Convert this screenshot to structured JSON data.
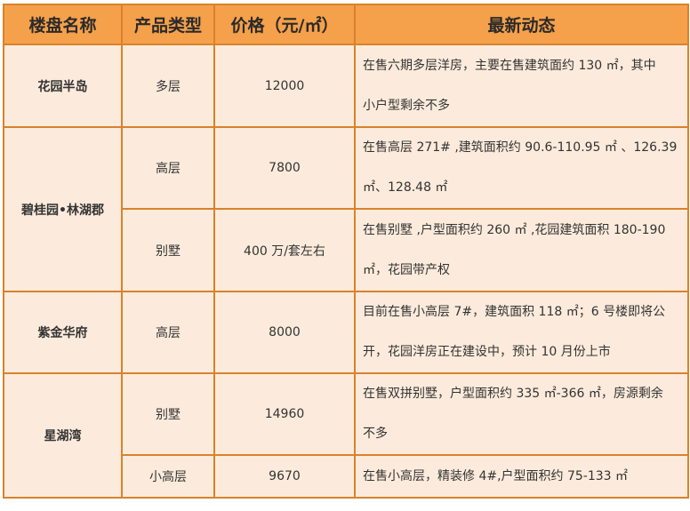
{
  "colors": {
    "header_bg": "#f5a04a",
    "cell_bg": "#fcebdc",
    "border": "#d9822b"
  },
  "headers": [
    "楼盘名称",
    "产品类型",
    "价格（元/㎡）",
    "最新动态"
  ],
  "projects": [
    {
      "name": "花园半岛",
      "rows": [
        {
          "type": "多层",
          "price": "12000",
          "desc": [
            "在售六期多层洋房，主要在售建筑面约 130 ㎡，其中",
            "小户型剩余不多"
          ]
        }
      ]
    },
    {
      "name": "碧桂园•林湖郡",
      "rows": [
        {
          "type": "高层",
          "price": "7800",
          "desc": [
            "在售高层 271# ,建筑面积约 90.6-110.95 ㎡ 、126.39",
            "㎡、128.48 ㎡"
          ]
        },
        {
          "type": "别墅",
          "price": "400 万/套左右",
          "desc": [
            "在售别墅 ,户型面积约 260 ㎡ ,花园建筑面积 180-190",
            "㎡，花园带产权"
          ]
        }
      ]
    },
    {
      "name": "紫金华府",
      "rows": [
        {
          "type": "高层",
          "price": "8000",
          "desc": [
            "目前在售小高层 7#，建筑面积 118 ㎡；6 号楼即将公",
            "开，花园洋房正在建设中，预计 10 月份上市"
          ]
        }
      ]
    },
    {
      "name": "星湖湾",
      "rows": [
        {
          "type": "别墅",
          "price": "14960",
          "desc": [
            "在售双拼别墅，户型面积约 335 ㎡-366 ㎡，房源剩余",
            "不多"
          ]
        },
        {
          "type": "小高层",
          "price": "9670",
          "desc": [
            "在售小高层，精装修 4#,户型面积约 75-133 ㎡"
          ]
        }
      ]
    }
  ]
}
